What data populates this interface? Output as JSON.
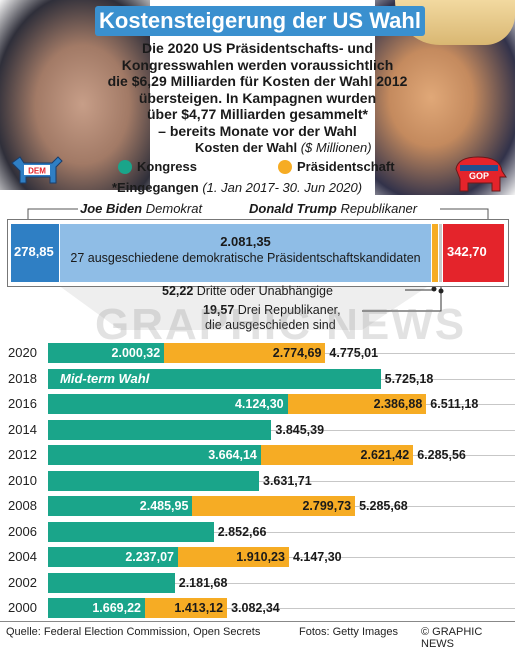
{
  "title": "Kostensteigerung der US Wahl",
  "intro": [
    "Die 2020 US Präsidentschafts- und",
    "Kongresswahlen werden voraussichtlich",
    "die $6,29 Milliarden für Kosten der Wahl 2012",
    "übersteigen. In Kampagnen wurden",
    "über $4,77 Milliarden gesammelt*",
    "– bereits Monate vor der Wahl"
  ],
  "legend": {
    "title": "Kosten der Wahl",
    "unit": "($ Millionen)",
    "items": [
      {
        "label": "Kongress",
        "color": "#1aa58a"
      },
      {
        "label": "Präsidentschaft",
        "color": "#f6ac24"
      }
    ]
  },
  "received": {
    "label": "*Eingegangen",
    "range": "(1. Jan 2017- 30. Jun 2020)"
  },
  "candidates": {
    "biden": {
      "name": "Joe Biden",
      "party": "Demokrat"
    },
    "trump": {
      "name": "Donald Trump",
      "party": "Republikaner"
    }
  },
  "party_logos": {
    "dem": "DEM",
    "rep": "GOP"
  },
  "breakdown": {
    "biden_value": "278,85",
    "dem_others_value": "2.081,35",
    "dem_others_label": "27 ausgeschiedene demokratische Präsidentschaftskandidaten",
    "third_value": "52,22",
    "third_label": "Dritte oder Unabhängige",
    "rep_others_value": "19,57",
    "rep_others_label_1": "Drei Republikaner,",
    "rep_others_label_2": "die ausgeschieden sind",
    "trump_value": "342,70"
  },
  "colors": {
    "congress": "#1aa58a",
    "president": "#f6ac24",
    "dem_blue": "#2f7fc4",
    "dem_light": "#8fbde6",
    "rep_red": "#e4242b",
    "title_blue": "#3a90cf"
  },
  "chart_data": {
    "type": "bar",
    "stacked": true,
    "orientation": "horizontal",
    "title": "Kosten der Wahl",
    "unit": "$ Millionen",
    "categories": [
      "2020",
      "2018",
      "2016",
      "2014",
      "2012",
      "2010",
      "2008",
      "2006",
      "2004",
      "2002",
      "2000"
    ],
    "series": [
      {
        "name": "Kongress",
        "values": [
          2000.32,
          5725.18,
          4124.3,
          3845.39,
          3664.14,
          3631.71,
          2485.95,
          2852.66,
          2237.07,
          2181.68,
          1669.22
        ]
      },
      {
        "name": "Präsidentschaft",
        "values": [
          2774.69,
          0,
          2386.88,
          0,
          2621.42,
          0,
          2799.73,
          0,
          1910.23,
          0,
          1413.12
        ]
      }
    ],
    "labels": {
      "congress": [
        "2.000,32",
        "",
        "4.124,30",
        "",
        "3.664,14",
        "",
        "2.485,95",
        "",
        "2.237,07",
        "",
        "1.669,22"
      ],
      "president": [
        "2.774,69",
        "",
        "2.386,88",
        "",
        "2.621,42",
        "",
        "2.799,73",
        "",
        "1.910,23",
        "",
        "1.413,12"
      ],
      "total": [
        "4.775,01",
        "5.725,18",
        "6.511,18",
        "3.845,39",
        "6.285,56",
        "3.631,71",
        "5.285,68",
        "2.852,66",
        "4.147,30",
        "2.181,68",
        "3.082,34"
      ]
    },
    "annotations": {
      "2018": "Mid-term Wahl"
    }
  },
  "watermark": "GRAPHIC NEWS",
  "footer": {
    "source": "Quelle: Federal Election Commission, Open Secrets",
    "photos": "Fotos: Getty Images",
    "copyright": "© GRAPHIC NEWS"
  }
}
